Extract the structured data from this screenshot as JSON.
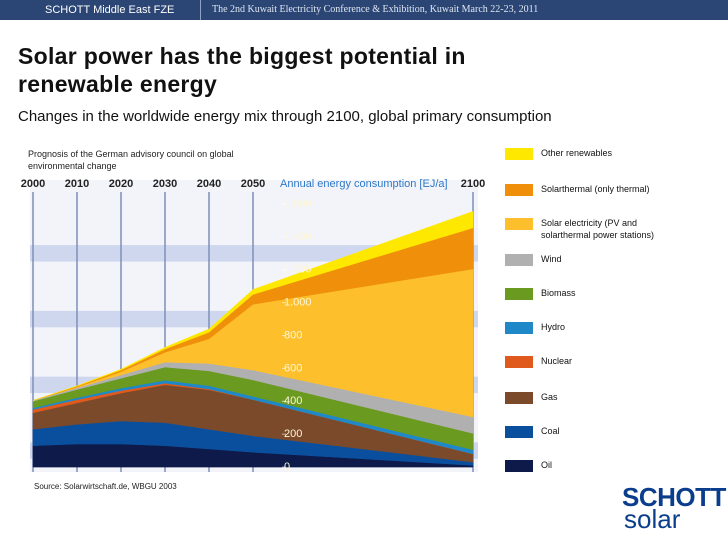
{
  "header": {
    "left": "SCHOTT Middle East FZE",
    "right": "The 2nd Kuwait Electricity Conference & Exhibition, Kuwait March 22-23, 2011"
  },
  "logo": {
    "brand": "SCHOTT",
    "sub": "solar"
  },
  "chart_data": {
    "type": "stacked_area",
    "title": "Solar power has the biggest potential in renewable energy",
    "subtitle": "Changes in the worldwide energy mix through 2100, global primary consumption",
    "note": "Prognosis of the German advisory council on global environmental change",
    "y_label": "Annual energy consumption [EJ/a]",
    "source": "Source: Solarwirtschaft.de, WBGU 2003",
    "x": [
      2000,
      2010,
      2020,
      2030,
      2040,
      2050,
      2100
    ],
    "xlim": [
      2000,
      2100
    ],
    "xticks": [
      2000,
      2010,
      2020,
      2030,
      2040,
      2050,
      2100
    ],
    "ylim": [
      -30,
      1746
    ],
    "yticks": [
      0,
      200,
      400,
      600,
      800,
      {
        "value": 1000,
        "label": "1.000"
      },
      {
        "value": 1200,
        "label": "1.200"
      },
      {
        "value": 1400,
        "label": "1.400"
      },
      {
        "value": 1600,
        "label": "1.600"
      }
    ],
    "series": [
      {
        "name": "Oil",
        "color": "#0d1a4a",
        "values": [
          130,
          140,
          140,
          130,
          110,
          90,
          10
        ]
      },
      {
        "name": "Coal",
        "color": "#0a4f9e",
        "values": [
          100,
          120,
          140,
          140,
          120,
          100,
          20
        ]
      },
      {
        "name": "Gas",
        "color": "#7a4a2a",
        "values": [
          100,
          130,
          170,
          230,
          240,
          220,
          50
        ]
      },
      {
        "name": "Nuclear",
        "color": "#e05a1e",
        "values": [
          20,
          20,
          15,
          10,
          5,
          0,
          0
        ]
      },
      {
        "name": "Hydro",
        "color": "#1e88c8",
        "values": [
          10,
          12,
          15,
          18,
          20,
          20,
          25
        ]
      },
      {
        "name": "Biomass",
        "color": "#6a9a20",
        "values": [
          40,
          50,
          60,
          80,
          90,
          100,
          100
        ]
      },
      {
        "name": "Wind",
        "color": "#b0b0b0",
        "values": [
          5,
          10,
          20,
          30,
          45,
          60,
          100
        ]
      },
      {
        "name": "Solar electricity (PV and solarthermal power stations)",
        "color": "#fdc02c",
        "values": [
          0,
          5,
          20,
          60,
          150,
          400,
          900
        ]
      },
      {
        "name": "Solarthermal (only thermal)",
        "color": "#f0900a",
        "values": [
          0,
          5,
          10,
          20,
          40,
          60,
          250
        ]
      },
      {
        "name": "Other renewables",
        "color": "#ffe800",
        "values": [
          0,
          2,
          5,
          10,
          20,
          30,
          100
        ]
      }
    ]
  }
}
